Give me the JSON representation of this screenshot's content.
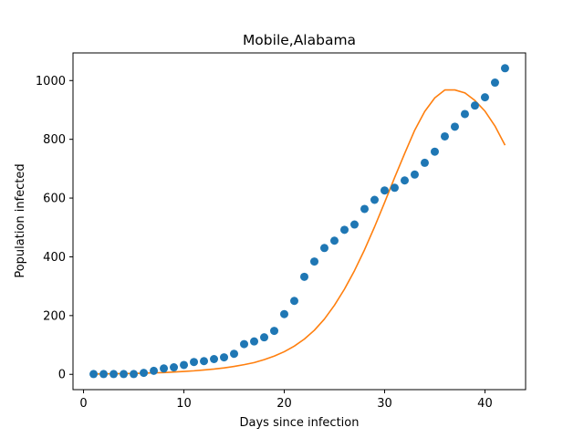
{
  "chart_data": {
    "type": "scatter",
    "title": "Mobile,Alabama",
    "xlabel": "Days since infection",
    "ylabel": "Population infected",
    "xlim": [
      -1.05,
      44.05
    ],
    "ylim": [
      -52.05,
      1094.05
    ],
    "x_ticks": [
      0,
      10,
      20,
      30,
      40
    ],
    "x_tick_labels": [
      "0",
      "10",
      "20",
      "30",
      "40"
    ],
    "y_ticks": [
      0,
      200,
      400,
      600,
      800,
      1000
    ],
    "y_tick_labels": [
      "0",
      "200",
      "400",
      "600",
      "800",
      "1000"
    ],
    "grid": false,
    "legend": "none",
    "series": [
      {
        "type": "scatter",
        "color": "#1f77b4",
        "x": [
          1,
          2,
          3,
          4,
          5,
          6,
          7,
          8,
          9,
          10,
          11,
          12,
          13,
          14,
          15,
          16,
          17,
          18,
          19,
          20,
          21,
          22,
          23,
          24,
          25,
          26,
          27,
          28,
          29,
          30,
          31,
          32,
          33,
          34,
          35,
          36,
          37,
          38,
          39,
          40,
          41,
          42
        ],
        "y": [
          1,
          1,
          1,
          1,
          1,
          5,
          12,
          20,
          24,
          32,
          42,
          45,
          52,
          58,
          70,
          103,
          112,
          126,
          148,
          205,
          250,
          332,
          384,
          430,
          455,
          492,
          510,
          563,
          594,
          626,
          635,
          660,
          680,
          720,
          758,
          810,
          843,
          886,
          915,
          943,
          993,
          1042
        ]
      },
      {
        "type": "line",
        "color": "#ff7f0e",
        "x": [
          1,
          2,
          3,
          4,
          5,
          6,
          7,
          8,
          9,
          10,
          11,
          12,
          13,
          14,
          15,
          16,
          17,
          18,
          19,
          20,
          21,
          22,
          23,
          24,
          25,
          26,
          27,
          28,
          29,
          30,
          31,
          32,
          33,
          34,
          35,
          36,
          37,
          38,
          39,
          40,
          41,
          42
        ],
        "y": [
          1,
          1.5,
          2,
          2.5,
          3,
          4,
          5,
          6,
          8,
          10,
          12,
          15,
          18,
          22,
          27,
          33,
          40,
          50,
          62,
          77,
          96,
          120,
          150,
          188,
          235,
          290,
          353,
          424,
          502,
          585,
          670,
          752,
          831,
          895,
          941,
          968,
          968,
          958,
          932,
          896,
          845,
          780
        ]
      }
    ]
  }
}
